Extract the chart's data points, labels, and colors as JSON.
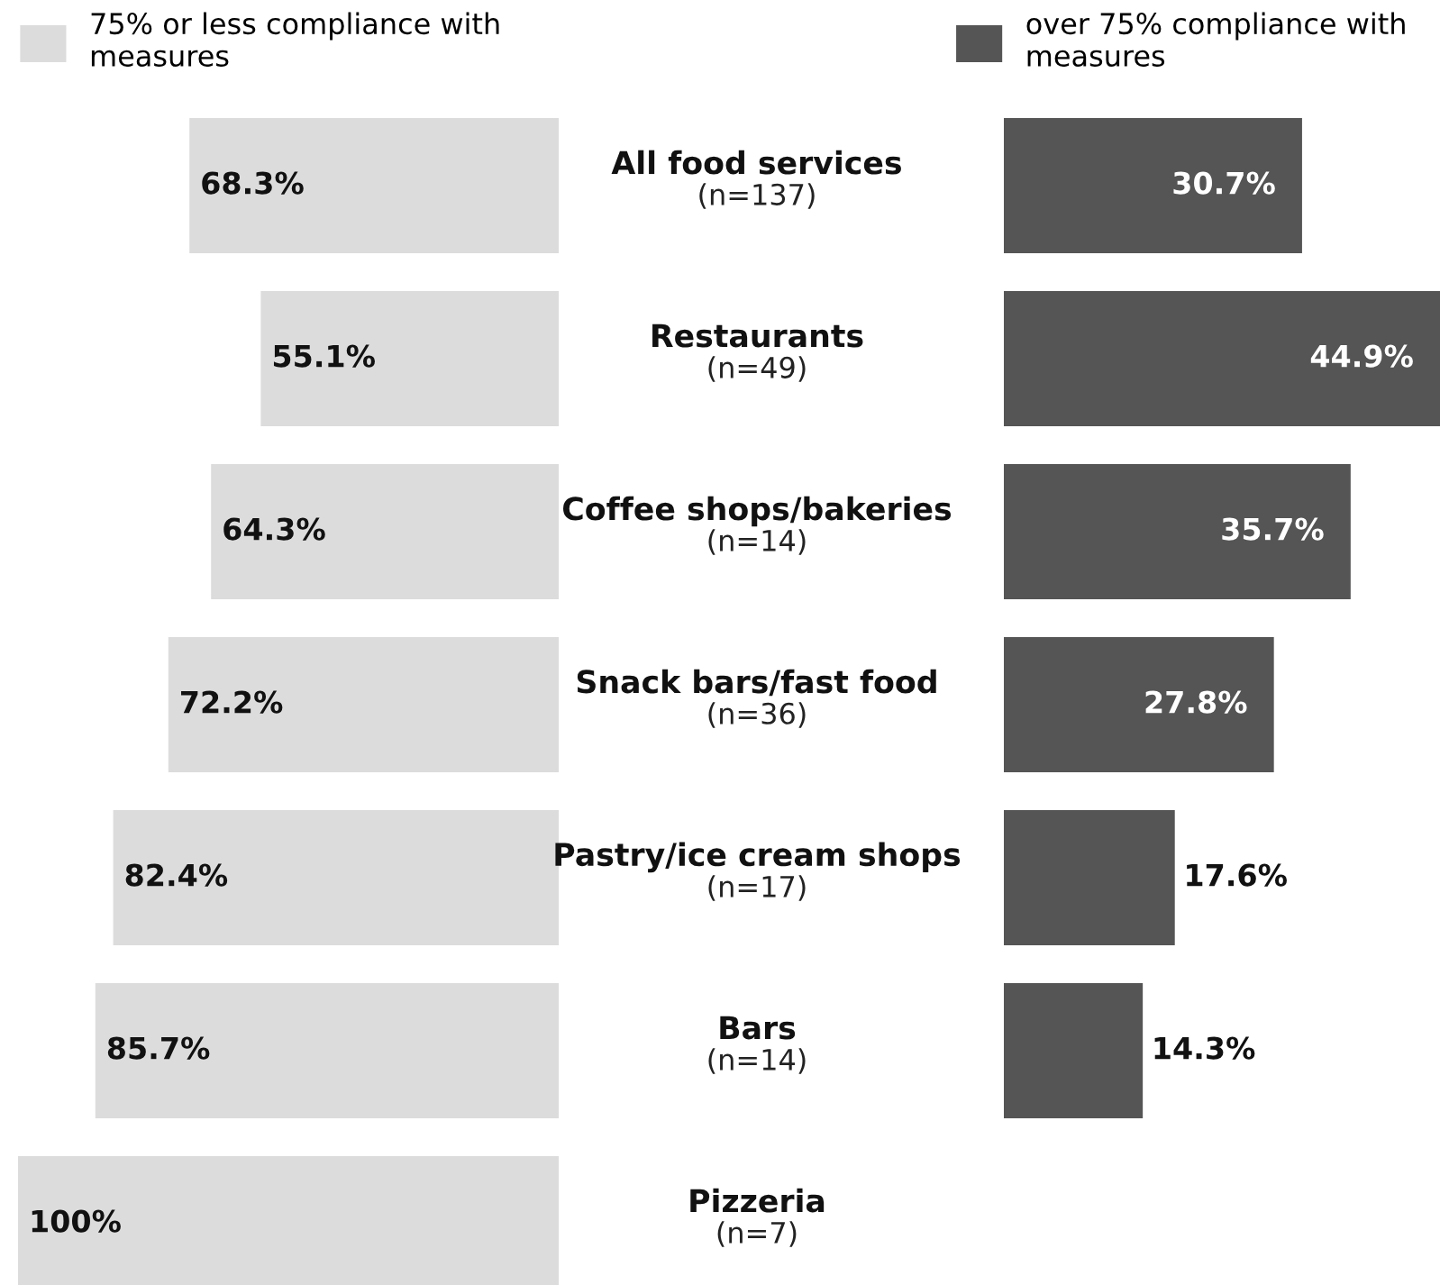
{
  "chart_data": [
    {
      "type": "bar",
      "orientation": "horizontal",
      "categories": [
        "All food services\n(n=137)",
        "Restaurants\n(n=49)",
        "Coffee shops/bakeries\n(n=14)",
        "Snack bars/fast food\n(n=36)",
        "Pastry/ice cream shops\n(n=17)",
        "Bars\n(n=14)",
        "Pizzeria\n(n=7)"
      ],
      "series": [
        {
          "name": "75% or less compliance with measures",
          "color": "#dcdcdc",
          "values": [
            68.3,
            55.1,
            64.3,
            72.2,
            82.4,
            85.7,
            100
          ],
          "value_labels": [
            "68.3%",
            "55.1%",
            "64.3%",
            "72.2%",
            "82.4%",
            "85.7%",
            "100%"
          ]
        }
      ],
      "legend": "top"
    },
    {
      "type": "bar",
      "orientation": "horizontal",
      "categories": [
        null,
        null,
        null,
        null,
        null,
        null,
        null
      ],
      "series": [
        {
          "name": "over 75% compliance with measures",
          "color": "#555555",
          "values": [
            30.7,
            44.9,
            35.7,
            27.8,
            17.6,
            14.3,
            null
          ],
          "value_labels": [
            "30.7%",
            "44.9%",
            "35.7%",
            "27.8%",
            "17.6%",
            "14.3%",
            null
          ]
        }
      ],
      "legend": "top"
    }
  ]
}
